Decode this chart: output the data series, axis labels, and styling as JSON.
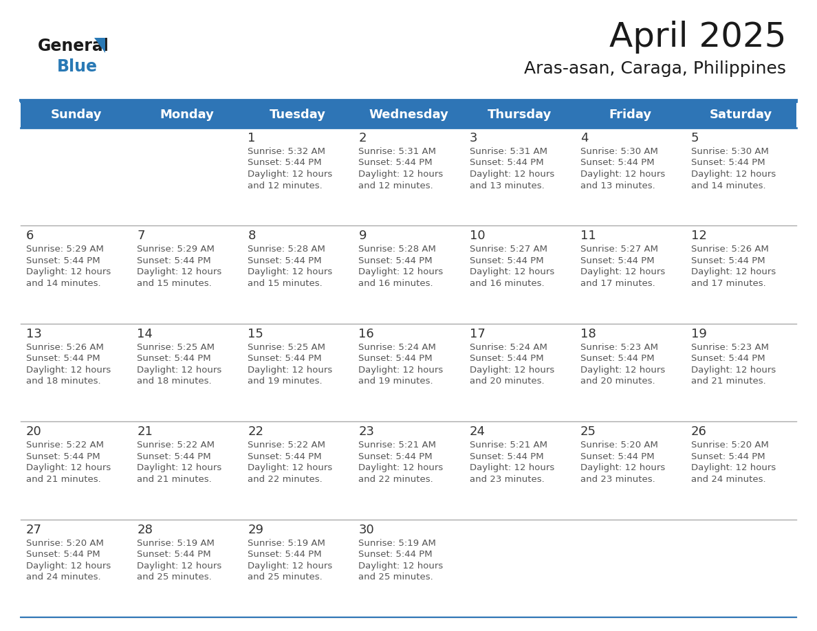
{
  "title": "April 2025",
  "subtitle": "Aras-asan, Caraga, Philippines",
  "header_bg": "#2E75B6",
  "header_text_color": "#FFFFFF",
  "days_of_week": [
    "Sunday",
    "Monday",
    "Tuesday",
    "Wednesday",
    "Thursday",
    "Friday",
    "Saturday"
  ],
  "cell_bg": "#FFFFFF",
  "cell_text_color": "#555555",
  "day_num_color": "#333333",
  "line_color": "#2E75B6",
  "row_line_color": "#AAAAAA",
  "calendar_data": [
    [
      null,
      null,
      {
        "day": 1,
        "sunrise": "5:32 AM",
        "sunset": "5:44 PM",
        "daylight_hours": 12,
        "daylight_min": 12
      },
      {
        "day": 2,
        "sunrise": "5:31 AM",
        "sunset": "5:44 PM",
        "daylight_hours": 12,
        "daylight_min": 12
      },
      {
        "day": 3,
        "sunrise": "5:31 AM",
        "sunset": "5:44 PM",
        "daylight_hours": 12,
        "daylight_min": 13
      },
      {
        "day": 4,
        "sunrise": "5:30 AM",
        "sunset": "5:44 PM",
        "daylight_hours": 12,
        "daylight_min": 13
      },
      {
        "day": 5,
        "sunrise": "5:30 AM",
        "sunset": "5:44 PM",
        "daylight_hours": 12,
        "daylight_min": 14
      }
    ],
    [
      {
        "day": 6,
        "sunrise": "5:29 AM",
        "sunset": "5:44 PM",
        "daylight_hours": 12,
        "daylight_min": 14
      },
      {
        "day": 7,
        "sunrise": "5:29 AM",
        "sunset": "5:44 PM",
        "daylight_hours": 12,
        "daylight_min": 15
      },
      {
        "day": 8,
        "sunrise": "5:28 AM",
        "sunset": "5:44 PM",
        "daylight_hours": 12,
        "daylight_min": 15
      },
      {
        "day": 9,
        "sunrise": "5:28 AM",
        "sunset": "5:44 PM",
        "daylight_hours": 12,
        "daylight_min": 16
      },
      {
        "day": 10,
        "sunrise": "5:27 AM",
        "sunset": "5:44 PM",
        "daylight_hours": 12,
        "daylight_min": 16
      },
      {
        "day": 11,
        "sunrise": "5:27 AM",
        "sunset": "5:44 PM",
        "daylight_hours": 12,
        "daylight_min": 17
      },
      {
        "day": 12,
        "sunrise": "5:26 AM",
        "sunset": "5:44 PM",
        "daylight_hours": 12,
        "daylight_min": 17
      }
    ],
    [
      {
        "day": 13,
        "sunrise": "5:26 AM",
        "sunset": "5:44 PM",
        "daylight_hours": 12,
        "daylight_min": 18
      },
      {
        "day": 14,
        "sunrise": "5:25 AM",
        "sunset": "5:44 PM",
        "daylight_hours": 12,
        "daylight_min": 18
      },
      {
        "day": 15,
        "sunrise": "5:25 AM",
        "sunset": "5:44 PM",
        "daylight_hours": 12,
        "daylight_min": 19
      },
      {
        "day": 16,
        "sunrise": "5:24 AM",
        "sunset": "5:44 PM",
        "daylight_hours": 12,
        "daylight_min": 19
      },
      {
        "day": 17,
        "sunrise": "5:24 AM",
        "sunset": "5:44 PM",
        "daylight_hours": 12,
        "daylight_min": 20
      },
      {
        "day": 18,
        "sunrise": "5:23 AM",
        "sunset": "5:44 PM",
        "daylight_hours": 12,
        "daylight_min": 20
      },
      {
        "day": 19,
        "sunrise": "5:23 AM",
        "sunset": "5:44 PM",
        "daylight_hours": 12,
        "daylight_min": 21
      }
    ],
    [
      {
        "day": 20,
        "sunrise": "5:22 AM",
        "sunset": "5:44 PM",
        "daylight_hours": 12,
        "daylight_min": 21
      },
      {
        "day": 21,
        "sunrise": "5:22 AM",
        "sunset": "5:44 PM",
        "daylight_hours": 12,
        "daylight_min": 21
      },
      {
        "day": 22,
        "sunrise": "5:22 AM",
        "sunset": "5:44 PM",
        "daylight_hours": 12,
        "daylight_min": 22
      },
      {
        "day": 23,
        "sunrise": "5:21 AM",
        "sunset": "5:44 PM",
        "daylight_hours": 12,
        "daylight_min": 22
      },
      {
        "day": 24,
        "sunrise": "5:21 AM",
        "sunset": "5:44 PM",
        "daylight_hours": 12,
        "daylight_min": 23
      },
      {
        "day": 25,
        "sunrise": "5:20 AM",
        "sunset": "5:44 PM",
        "daylight_hours": 12,
        "daylight_min": 23
      },
      {
        "day": 26,
        "sunrise": "5:20 AM",
        "sunset": "5:44 PM",
        "daylight_hours": 12,
        "daylight_min": 24
      }
    ],
    [
      {
        "day": 27,
        "sunrise": "5:20 AM",
        "sunset": "5:44 PM",
        "daylight_hours": 12,
        "daylight_min": 24
      },
      {
        "day": 28,
        "sunrise": "5:19 AM",
        "sunset": "5:44 PM",
        "daylight_hours": 12,
        "daylight_min": 25
      },
      {
        "day": 29,
        "sunrise": "5:19 AM",
        "sunset": "5:44 PM",
        "daylight_hours": 12,
        "daylight_min": 25
      },
      {
        "day": 30,
        "sunrise": "5:19 AM",
        "sunset": "5:44 PM",
        "daylight_hours": 12,
        "daylight_min": 25
      },
      null,
      null,
      null
    ]
  ],
  "logo_color_general": "#1a1a1a",
  "logo_color_blue": "#2979B5",
  "logo_triangle_color": "#2979B5",
  "title_fontsize": 36,
  "subtitle_fontsize": 18,
  "header_fontsize": 13,
  "day_num_fontsize": 13,
  "cell_text_fontsize": 9.5
}
